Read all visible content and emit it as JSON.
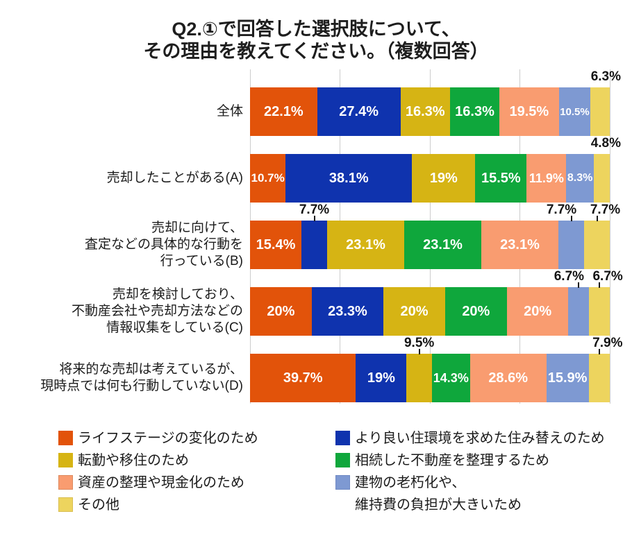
{
  "title": {
    "line1": "Q2.①で回答した選択肢について、",
    "line2": "その理由を教えてください。（複数回答）"
  },
  "chart_data": {
    "type": "bar",
    "orientation": "horizontal-stacked",
    "unit": "%",
    "note": "複数回答 (multiple answers) — row totals exceed 100%; segment widths are value / row total",
    "grid": {
      "show": true,
      "x_percents": [
        0,
        25,
        50,
        75,
        100
      ]
    },
    "series_names": [
      "ライフステージの変化のため",
      "より良い住環境を求めた住み替えのため",
      "転勤や移住のため",
      "相続した不動産を整理するため",
      "資産の整理や現金化のため",
      "建物の老朽化や、維持費の負担が大きいため",
      "その他"
    ],
    "series_colors": [
      "#E2530A",
      "#0F33AE",
      "#D6B414",
      "#0FA73C",
      "#F99C70",
      "#7E99D2",
      "#EDD45E"
    ],
    "rows": [
      {
        "label_lines": [
          "全体"
        ],
        "values": [
          22.1,
          27.4,
          16.3,
          16.3,
          19.5,
          10.5,
          6.3
        ],
        "labels": [
          "22.1%",
          "27.4%",
          "16.3%",
          "16.3%",
          "19.5%",
          "10.5%",
          "6.3%"
        ],
        "outside_label_indices": [
          6
        ],
        "outside_ticks": false
      },
      {
        "label_lines": [
          "売却したことがある(A)"
        ],
        "values": [
          10.7,
          38.1,
          19,
          15.5,
          11.9,
          8.3,
          4.8
        ],
        "labels": [
          "10.7%",
          "38.1%",
          "19%",
          "15.5%",
          "11.9%",
          "8.3%",
          "4.8%"
        ],
        "outside_label_indices": [
          6
        ],
        "outside_ticks": false
      },
      {
        "label_lines": [
          "売却に向けて、",
          "査定などの具体的な行動を",
          "行っている(B)"
        ],
        "values": [
          15.4,
          7.7,
          23.1,
          23.1,
          23.1,
          7.7,
          7.7
        ],
        "labels": [
          "15.4%",
          "7.7%",
          "23.1%",
          "23.1%",
          "23.1%",
          "7.7%",
          "7.7%"
        ],
        "outside_label_indices": [
          1,
          5,
          6
        ],
        "outside_ticks": true
      },
      {
        "label_lines": [
          "売却を検討しており、",
          "不動産会社や売却方法などの",
          "情報収集をしている(C)"
        ],
        "values": [
          20,
          23.3,
          20,
          20,
          20,
          6.7,
          6.7
        ],
        "labels": [
          "20%",
          "23.3%",
          "20%",
          "20%",
          "20%",
          "6.7%",
          "6.7%"
        ],
        "outside_label_indices": [
          5,
          6
        ],
        "outside_ticks": true
      },
      {
        "label_lines": [
          "将来的な売却は考えているが、",
          "現時点では何も行動していない(D)"
        ],
        "values": [
          39.7,
          19,
          9.5,
          14.3,
          28.6,
          15.9,
          7.9
        ],
        "labels": [
          "39.7%",
          "19%",
          "9.5%",
          "14.3%",
          "28.6%",
          "15.9%",
          "7.9%"
        ],
        "outside_label_indices": [
          2,
          6
        ],
        "outside_ticks": true
      }
    ],
    "series": [
      {
        "name": "ライフステージの変化のため",
        "color": "#E2530A",
        "values": [
          22.1,
          10.7,
          15.4,
          20,
          39.7
        ]
      },
      {
        "name": "より良い住環境を求めた住み替えのため",
        "color": "#0F33AE",
        "values": [
          27.4,
          38.1,
          7.7,
          23.3,
          19
        ]
      },
      {
        "name": "転勤や移住のため",
        "color": "#D6B414",
        "values": [
          16.3,
          19,
          23.1,
          20,
          9.5
        ]
      },
      {
        "name": "相続した不動産を整理するため",
        "color": "#0FA73C",
        "values": [
          16.3,
          15.5,
          23.1,
          20,
          14.3
        ]
      },
      {
        "name": "資産の整理や現金化のため",
        "color": "#F99C70",
        "values": [
          19.5,
          11.9,
          23.1,
          20,
          28.6
        ]
      },
      {
        "name": "建物の老朽化や、維持費の負担が大きいため",
        "color": "#7E99D2",
        "values": [
          10.5,
          8.3,
          7.7,
          6.7,
          15.9
        ]
      },
      {
        "name": "その他",
        "color": "#EDD45E",
        "values": [
          6.3,
          4.8,
          7.7,
          6.7,
          7.9
        ]
      }
    ],
    "legend": {
      "position": "bottom",
      "columns": [
        [
          {
            "lines": [
              "ライフステージの変化のため"
            ],
            "color": "#E2530A",
            "border": ""
          },
          {
            "lines": [
              "転勤や移住のため"
            ],
            "color": "#D6B414",
            "border": ""
          },
          {
            "lines": [
              "資産の整理や現金化のため"
            ],
            "color": "#F99C70",
            "border": "#DD8A5F"
          },
          {
            "lines": [
              "その他"
            ],
            "color": "#EDD45E",
            "border": "#D9BE52"
          }
        ],
        [
          {
            "lines": [
              "より良い住環境を求めた住み替えのため"
            ],
            "color": "#0F33AE",
            "border": ""
          },
          {
            "lines": [
              "相続した不動産を整理するため"
            ],
            "color": "#0FA73C",
            "border": ""
          },
          {
            "lines": [
              "建物の老朽化や、",
              "維持費の負担が大きいため"
            ],
            "color": "#7E99D2",
            "border": "#7089C4"
          }
        ]
      ]
    }
  }
}
